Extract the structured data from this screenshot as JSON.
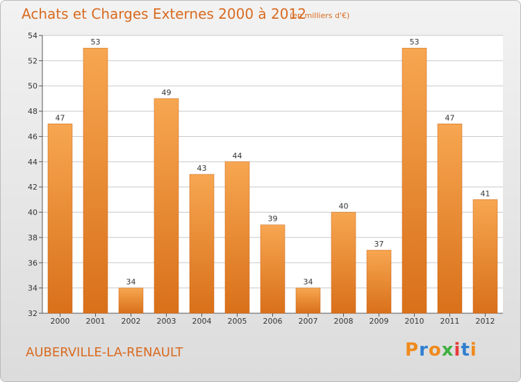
{
  "header": {
    "title": "Achats et Charges Externes 2000 à 2012",
    "unit": "(en milliers d'€)"
  },
  "footer": {
    "town": "AUBERVILLE-LA-RENAULT",
    "logo": "Proxiti"
  },
  "colors": {
    "text_accent": "#d96a1f",
    "bar_light": "#f7a651",
    "bar_dark": "#d9701a",
    "gridline": "#c8c8c8",
    "plot_background": "#ffffff",
    "logo_letters": [
      "#f08a1c",
      "#2f7fd0",
      "#f08a1c",
      "#3fb041",
      "#e83a3a",
      "#2f7fd0",
      "#f08a1c"
    ]
  },
  "chart_data": {
    "type": "bar",
    "title": "Achats et Charges Externes 2000 à 2012",
    "subtitle": "(en milliers d'€)",
    "xlabel": "",
    "ylabel": "",
    "categories": [
      "2000",
      "2001",
      "2002",
      "2003",
      "2004",
      "2005",
      "2006",
      "2007",
      "2008",
      "2009",
      "2010",
      "2011",
      "2012"
    ],
    "values": [
      47,
      53,
      34,
      49,
      43,
      44,
      39,
      34,
      40,
      37,
      53,
      47,
      41
    ],
    "data_labels": [
      "47",
      "53",
      "34",
      "49",
      "43",
      "44",
      "39",
      "34",
      "40",
      "37",
      "53",
      "47",
      "41"
    ],
    "ylim": [
      32,
      54
    ],
    "yticks": [
      "32",
      "34",
      "36",
      "38",
      "40",
      "42",
      "44",
      "46",
      "48",
      "50",
      "52",
      "54"
    ],
    "grid": true,
    "legend": "none"
  }
}
